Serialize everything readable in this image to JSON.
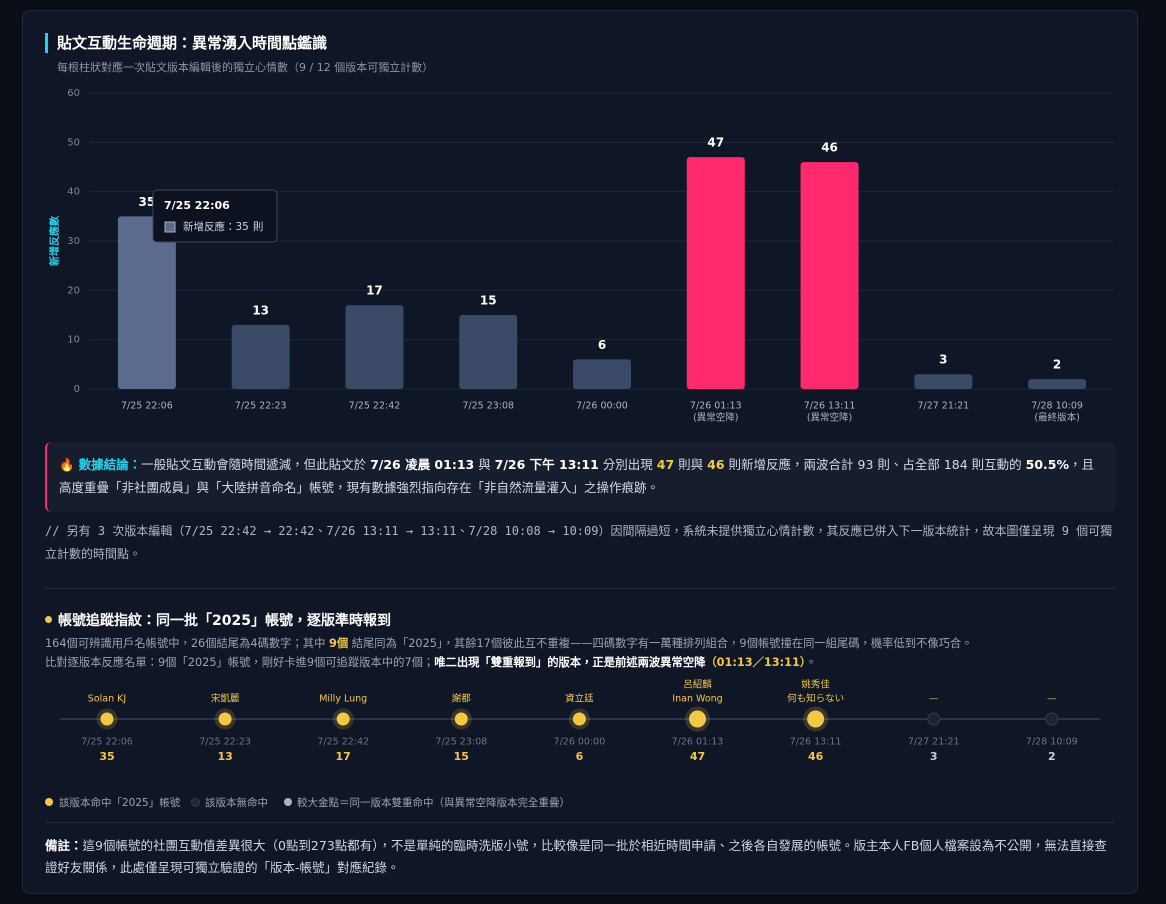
{
  "chart_data": {
    "type": "bar",
    "title": "貼文互動生命週期：異常湧入時間點鑑識",
    "subtitle": "每根柱狀對應一次貼文版本編輯後的獨立心情數（9 / 12 個版本可獨立計數）",
    "y_label": "新增反應數",
    "categories": [
      "7/25 22:06",
      "7/25 22:23",
      "7/25 22:42",
      "7/25 23:08",
      "7/26 00:00",
      "7/26 01:13",
      "7/26 13:11",
      "7/27 21:21",
      "7/28 10:09"
    ],
    "category_notes": [
      null,
      null,
      null,
      null,
      null,
      "(異常空降)",
      "(異常空降)",
      null,
      "(最終版本)"
    ],
    "values": [
      35,
      13,
      17,
      15,
      6,
      47,
      46,
      3,
      2
    ],
    "colors": [
      "#5b6b8d",
      "#3a4965",
      "#3a4965",
      "#3a4965",
      "#3a4965",
      "#ff2a6d",
      "#ff2a6d",
      "#3a4965",
      "#3a4965"
    ],
    "ylim": [
      0,
      60
    ],
    "yticks": [
      0,
      10,
      20,
      30,
      40,
      50,
      60
    ],
    "grid": true,
    "tooltip": {
      "title": "7/25 22:06",
      "label": "新增反應：",
      "value": 35,
      "unit": "則"
    }
  },
  "conclusion": {
    "icon": "🔥",
    "heading": "數據結論：",
    "parts": [
      "一般貼文互動會隨時間遞減，但此貼文於 ",
      "7/26 凌晨 01:13",
      " 與 ",
      "7/26 下午 13:11",
      " 分別出現 ",
      "47",
      " 則與 ",
      "46",
      " 則新增反應，兩波合計 93 則、占全部 184 則互動的 ",
      "50.5%",
      "，且高度重疊「非社團成員」與「大陸拼音命名」帳號，現有數據強烈指向存在「非自然流量灌入」之操作痕跡。"
    ]
  },
  "note": "// 另有 3 次版本編輯（7/25 22:42 → 22:42、7/26 13:11 → 13:11、7/28 10:08 → 10:09）因間隔過短，系統未提供獨立心情計數，其反應已併入下一版本統計，故本圖僅呈現 9 個可獨立計數的時間點。",
  "tracking": {
    "title": "帳號追蹤指紋：同一批「2025」帳號，逐版準時報到",
    "line1": [
      "164個可辨識用戶名帳號中，26個結尾為4碼數字；其中 ",
      "9個",
      " 結尾同為「2025」，其餘17個彼此互不重複——四碼數字有一萬種排列組合，9個帳號撞在同一組尾碼，機率低到不像巧合。"
    ],
    "line2": [
      "比對逐版本反應名單：9個「2025」帳號，剛好卡進9個可追蹤版本中的7個；",
      "唯二出現「雙重報到」的版本，正是前述兩波異常空降",
      "（01:13／13:11）",
      "。"
    ],
    "nodes": [
      {
        "names": [
          "Solan KJ"
        ],
        "status": "hit"
      },
      {
        "names": [
          "宋凱麗"
        ],
        "status": "hit"
      },
      {
        "names": [
          "Milly Lung"
        ],
        "status": "hit"
      },
      {
        "names": [
          "謝都"
        ],
        "status": "hit"
      },
      {
        "names": [
          "資立廷"
        ],
        "status": "hit"
      },
      {
        "names": [
          "呂紹麟",
          "Inan Wong"
        ],
        "status": "double"
      },
      {
        "names": [
          "姚秀佳",
          "何も知らない"
        ],
        "status": "double"
      },
      {
        "names": [
          "—"
        ],
        "status": "miss"
      },
      {
        "names": [
          "—"
        ],
        "status": "miss"
      }
    ],
    "legend": [
      "該版本命中「2025」帳號",
      "該版本無命中",
      "較大金點＝同一版本雙重命中（與異常空降版本完全重疊）"
    ]
  },
  "footnote": {
    "heading": "備註：",
    "text": "這9個帳號的社團互動值差異很大（0點到273點都有），不是單純的臨時洗版小號，比較像是同一批於相近時間申請、之後各自發展的帳號。版主本人FB個人檔案設為不公開，無法直接查證好友關係，此處僅呈現可獨立驗證的「版本-帳號」對應紀錄。"
  }
}
